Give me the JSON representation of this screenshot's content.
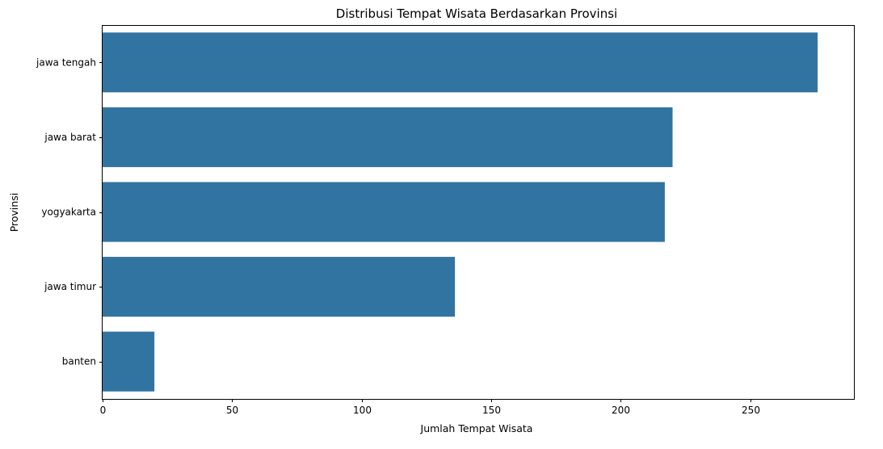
{
  "chart_data": {
    "type": "bar",
    "orientation": "horizontal",
    "title": "Distribusi Tempat Wisata Berdasarkan Provinsi",
    "xlabel": "Jumlah Tempat Wisata",
    "ylabel": "Provinsi",
    "categories": [
      "jawa tengah",
      "jawa barat",
      "yogyakarta",
      "jawa timur",
      "banten"
    ],
    "values": [
      276,
      220,
      217,
      136,
      20
    ],
    "xlim": [
      0,
      290
    ],
    "xticks": [
      0,
      50,
      100,
      150,
      200,
      250
    ],
    "bar_color": "#3274a1",
    "grid": false,
    "legend": "none"
  }
}
